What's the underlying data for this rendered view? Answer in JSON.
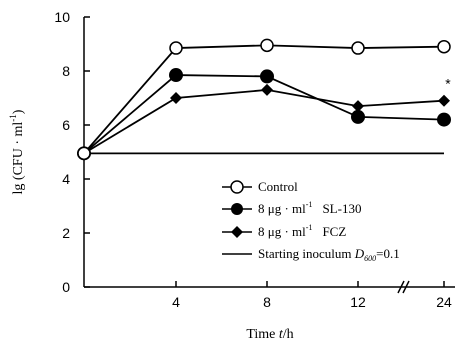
{
  "chart_data": {
    "type": "line",
    "xlabel": "Time t/h",
    "xlabel_prefix": "Time ",
    "xlabel_var": "t",
    "xlabel_unit": "/h",
    "ylabel": "lg (CFU · ml⁻¹)",
    "ylim": [
      0,
      10
    ],
    "y_ticks": [
      "0",
      "2",
      "4",
      "6",
      "8",
      "10"
    ],
    "x_ticks": [
      "4",
      "8",
      "12",
      "24"
    ],
    "x_axis_break": "between 12 and 24",
    "grid": false,
    "legend_position": "bottom-right",
    "series": [
      {
        "name": "Control",
        "marker": "open-circle",
        "points": [
          {
            "x": 0,
            "y": 4.95
          },
          {
            "x": 4,
            "y": 8.85
          },
          {
            "x": 8,
            "y": 8.95
          },
          {
            "x": 12,
            "y": 8.85
          },
          {
            "x": 24,
            "y": 8.9
          }
        ]
      },
      {
        "name": "8 μg · ml⁻¹ SL-130",
        "marker": "filled-circle",
        "points": [
          {
            "x": 0,
            "y": 4.95
          },
          {
            "x": 4,
            "y": 7.85
          },
          {
            "x": 8,
            "y": 7.8
          },
          {
            "x": 12,
            "y": 6.3
          },
          {
            "x": 24,
            "y": 6.2
          }
        ]
      },
      {
        "name": "8 μg · ml⁻¹ FCZ",
        "marker": "filled-diamond",
        "points": [
          {
            "x": 0,
            "y": 4.95
          },
          {
            "x": 4,
            "y": 7.0
          },
          {
            "x": 8,
            "y": 7.3
          },
          {
            "x": 12,
            "y": 6.7
          },
          {
            "x": 24,
            "y": 6.9
          }
        ]
      },
      {
        "name": "Starting inoculum D600=0.1",
        "marker": "none",
        "points": [
          {
            "x": 0,
            "y": 4.95
          },
          {
            "x": 24,
            "y": 4.95
          }
        ]
      }
    ],
    "annotations": [
      {
        "text": "*",
        "x": 24,
        "y": 7.5
      }
    ]
  },
  "legend": {
    "control": "Control",
    "sl130_prefix": "8 μg · ml",
    "sl130_exp": "-1",
    "sl130_name": "SL-130",
    "fcz_prefix": "8 μg · ml",
    "fcz_exp": "-1",
    "fcz_name": "FCZ",
    "inoculum_prefix": "Starting inoculum ",
    "inoculum_var": "D",
    "inoculum_sub": "600",
    "inoculum_suffix": "=0.1"
  },
  "ylabel_parts": {
    "prefix": "lg (CFU · ml",
    "exp": "-1",
    "suffix": ")"
  }
}
